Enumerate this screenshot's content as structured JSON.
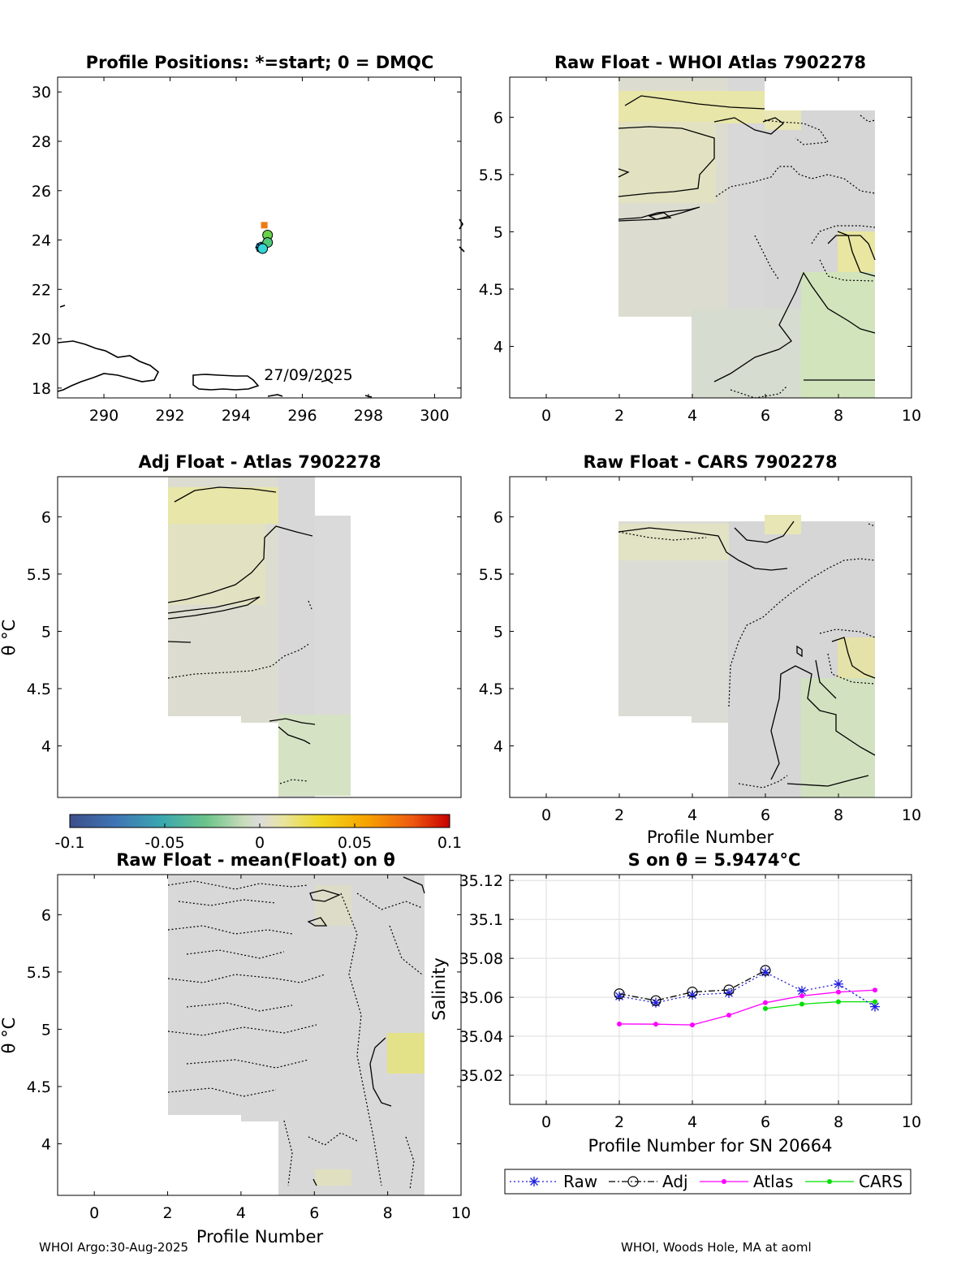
{
  "chart_data": [
    {
      "type": "scatter",
      "title": "Profile Positions: *=start; 0 = DMQC",
      "xlim": [
        288.6,
        300.8
      ],
      "ylim": [
        17.6,
        30.6
      ],
      "xticks": [
        "290",
        "292",
        "294",
        "296",
        "298",
        "300"
      ],
      "yticks": [
        "18",
        "20",
        "22",
        "24",
        "26",
        "28",
        "30"
      ],
      "annotation": "27/09/2025",
      "points": [
        {
          "x": 294.75,
          "y": 23.7,
          "color": "#1d8fe6",
          "marker": "star"
        },
        {
          "x": 294.95,
          "y": 24.2,
          "color": "#69d24a",
          "marker": "circle"
        },
        {
          "x": 294.95,
          "y": 23.9,
          "color": "#4ec97a",
          "marker": "circle"
        },
        {
          "x": 294.8,
          "y": 23.65,
          "color": "#35d5d5",
          "marker": "circle"
        },
        {
          "x": 294.85,
          "y": 24.6,
          "color": "#f07a12",
          "marker": "square"
        }
      ]
    },
    {
      "type": "heatmap",
      "title": "Raw Float - WHOI Atlas  7902278",
      "xlim": [
        -1,
        10
      ],
      "ylim": [
        3.55,
        6.35
      ],
      "xticks": [
        "0",
        "2",
        "4",
        "6",
        "8",
        "10"
      ],
      "yticks": [
        "4",
        "4.5",
        "5",
        "5.5",
        "6"
      ]
    },
    {
      "type": "heatmap",
      "title": "Adj Float - Atlas  7902278",
      "ylabel": "θ °C",
      "xlim": [
        -1,
        10
      ],
      "ylim": [
        3.55,
        6.35
      ],
      "yticks": [
        "4",
        "4.5",
        "5",
        "5.5",
        "6"
      ]
    },
    {
      "type": "heatmap",
      "title": "Raw Float - CARS  7902278",
      "xlabel": "Profile Number",
      "xlim": [
        -1,
        10
      ],
      "ylim": [
        3.55,
        6.35
      ],
      "xticks": [
        "0",
        "2",
        "4",
        "6",
        "8",
        "10"
      ],
      "yticks": [
        "4",
        "4.5",
        "5",
        "5.5",
        "6"
      ]
    },
    {
      "type": "heatmap",
      "title": "Raw Float - mean(Float) on θ",
      "xlabel": "Profile Number",
      "ylabel": "θ °C",
      "xlim": [
        -1,
        10
      ],
      "ylim": [
        3.55,
        6.35
      ],
      "xticks": [
        "0",
        "2",
        "4",
        "6",
        "8",
        "10"
      ],
      "yticks": [
        "4",
        "4.5",
        "5",
        "5.5",
        "6"
      ]
    },
    {
      "type": "line",
      "title": "S on θ = 5.9474°C",
      "xlabel": "Profile Number for SN 20664",
      "ylabel": "Salinity",
      "xlim": [
        -1,
        10
      ],
      "ylim": [
        35.005,
        35.123
      ],
      "xticks": [
        "0",
        "2",
        "4",
        "6",
        "8",
        "10"
      ],
      "yticks": [
        "35.02",
        "35.04",
        "35.06",
        "35.08",
        "35.1",
        "35.12"
      ],
      "grid": true,
      "x": [
        2,
        3,
        4,
        5,
        6,
        7,
        8,
        9
      ],
      "series": [
        {
          "name": "Raw",
          "color": "#1f1fdc",
          "values": [
            35.0605,
            35.0572,
            35.0612,
            35.0622,
            35.0728,
            35.0633,
            35.0668,
            35.0552
          ]
        },
        {
          "name": "Adj",
          "color": "#000000",
          "values": [
            35.0618,
            35.0583,
            35.0627,
            35.0638,
            35.0738,
            null,
            null,
            null
          ]
        },
        {
          "name": "Atlas",
          "color": "#ff00ff",
          "values": [
            35.0463,
            35.0462,
            35.0458,
            35.0508,
            35.0572,
            35.0607,
            35.0627,
            35.0637
          ]
        },
        {
          "name": "CARS",
          "color": "#00e000",
          "values": [
            null,
            null,
            null,
            null,
            35.0542,
            35.0565,
            35.0577,
            35.0577
          ]
        }
      ],
      "legend": "bottom"
    }
  ],
  "colorbar": {
    "min": -0.1,
    "max": 0.1,
    "ticks": [
      "-0.1",
      "-0.05",
      "0",
      "0.05",
      "0.1"
    ]
  },
  "footer": {
    "left": "WHOI Argo:30-Aug-2025",
    "right": "WHOI, Woods Hole, MA at aoml"
  }
}
